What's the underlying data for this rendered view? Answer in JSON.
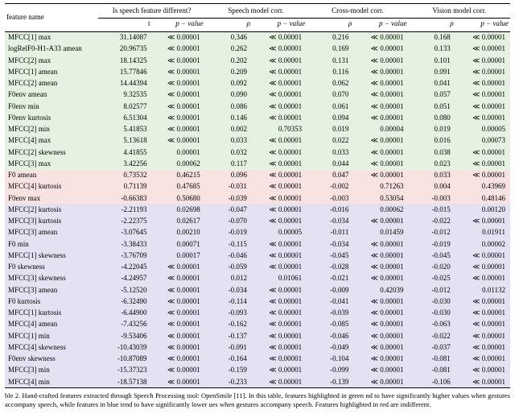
{
  "colors": {
    "green": "#e5f2e1",
    "red": "#f8e2e2",
    "blue": "#e3e2f3",
    "rule": "#000000",
    "bg": "#ffffff"
  },
  "header": {
    "feature": "feature name",
    "grp1": "Is speech feature different?",
    "grp2": "Speech model corr.",
    "grp3": "Cross-model corr.",
    "grp4": "Vision model corr.",
    "t": "t",
    "p": "p − value",
    "rho": "ρ"
  },
  "caption": "ble 2.  Hand-crafted features extracted through Speech Processing tool: OpenSmile [11]. In this table, features highlighted in green nd to have significantly higher values when gestures accompany speech, while features in blue tend to have significantly lower ues when gestures accompany speech. Features highlighted in red are indifferent.",
  "rows": [
    {
      "c": "g",
      "f": "MFCC[1] max",
      "t": "31.14087",
      "p1": "≪ 0.00001",
      "r1": "0.346",
      "pv1": "≪ 0.00001",
      "r2": "0.216",
      "pv2": "≪ 0.00001",
      "r3": "0.168",
      "pv3": "≪ 0.00001"
    },
    {
      "c": "g",
      "f": "logRelF0-H1-A33 amean",
      "t": "20.96735",
      "p1": "≪ 0.00001",
      "r1": "0.262",
      "pv1": "≪ 0.00001",
      "r2": "0.169",
      "pv2": "≪ 0.00001",
      "r3": "0.133",
      "pv3": "≪ 0.00001"
    },
    {
      "c": "g",
      "f": "MFCC[2] max",
      "t": "18.14325",
      "p1": "≪ 0.00001",
      "r1": "0.202",
      "pv1": "≪ 0.00001",
      "r2": "0.131",
      "pv2": "≪ 0.00001",
      "r3": "0.101",
      "pv3": "≪ 0.00001"
    },
    {
      "c": "g",
      "f": "MFCC[1] amean",
      "t": "15.77846",
      "p1": "≪ 0.00001",
      "r1": "0.209",
      "pv1": "≪ 0.00001",
      "r2": "0.116",
      "pv2": "≪ 0.00001",
      "r3": "0.091",
      "pv3": "≪ 0.00001"
    },
    {
      "c": "g",
      "f": "MFCC[2] amean",
      "t": "14.44394",
      "p1": "≪ 0.00001",
      "r1": "0.092",
      "pv1": "≪ 0.00001",
      "r2": "0.062",
      "pv2": "≪ 0.00001",
      "r3": "0.041",
      "pv3": "≪ 0.00001"
    },
    {
      "c": "g",
      "f": "F0env amean",
      "t": "9.32535",
      "p1": "≪ 0.00001",
      "r1": "0.090",
      "pv1": "≪ 0.00001",
      "r2": "0.070",
      "pv2": "≪ 0.00001",
      "r3": "0.057",
      "pv3": "≪ 0.00001"
    },
    {
      "c": "g",
      "f": "F0env min",
      "t": "8.02577",
      "p1": "≪ 0.00001",
      "r1": "0.086",
      "pv1": "≪ 0.00001",
      "r2": "0.061",
      "pv2": "≪ 0.00001",
      "r3": "0.051",
      "pv3": "≪ 0.00001"
    },
    {
      "c": "g",
      "f": "F0env kurtosis",
      "t": "6.51304",
      "p1": "≪ 0.00001",
      "r1": "0.146",
      "pv1": "≪ 0.00001",
      "r2": "0.094",
      "pv2": "≪ 0.00001",
      "r3": "0.080",
      "pv3": "≪ 0.00001"
    },
    {
      "c": "g",
      "f": "MFCC[2] min",
      "t": "5.41853",
      "p1": "≪ 0.00001",
      "r1": "0.002",
      "pv1": "0.70353",
      "r2": "0.019",
      "pv2": "0.00004",
      "r3": "0.019",
      "pv3": "0.00005"
    },
    {
      "c": "g",
      "f": "MFCC[4] max",
      "t": "5.13618",
      "p1": "≪ 0.00001",
      "r1": "0.033",
      "pv1": "≪ 0.00001",
      "r2": "0.022",
      "pv2": "≪ 0.00001",
      "r3": "0.016",
      "pv3": "0.00073"
    },
    {
      "c": "g",
      "f": "MFCC[2] skewness",
      "t": "4.41855",
      "p1": "0.00001",
      "r1": "0.032",
      "pv1": "≪ 0.00001",
      "r2": "0.033",
      "pv2": "≪ 0.00001",
      "r3": "0.038",
      "pv3": "≪ 0.00001"
    },
    {
      "c": "g",
      "f": "MFCC[3] max",
      "t": "3.42256",
      "p1": "0.00062",
      "r1": "0.117",
      "pv1": "≪ 0.00001",
      "r2": "0.044",
      "pv2": "≪ 0.00001",
      "r3": "0.023",
      "pv3": "≪ 0.00001"
    },
    {
      "c": "r",
      "f": "F0 amean",
      "t": "0.73532",
      "p1": "0.46215",
      "r1": "0.096",
      "pv1": "≪ 0.00001",
      "r2": "0.047",
      "pv2": "≪ 0.00001",
      "r3": "0.033",
      "pv3": "≪ 0.00001"
    },
    {
      "c": "r",
      "f": "MFCC[4] kurtosis",
      "t": "0.71139",
      "p1": "0.47685",
      "r1": "-0.031",
      "pv1": "≪ 0.00001",
      "r2": "-0.002",
      "pv2": "0.71263",
      "r3": "0.004",
      "pv3": "0.43969"
    },
    {
      "c": "r",
      "f": "F0env max",
      "t": "-0.66383",
      "p1": "0.50680",
      "r1": "-0.039",
      "pv1": "≪ 0.00001",
      "r2": "-0.003",
      "pv2": "0.53054",
      "r3": "-0.003",
      "pv3": "0.48146"
    },
    {
      "c": "b",
      "f": "MFCC[2] kurtosis",
      "t": "-2.21193",
      "p1": "0.02698",
      "r1": "-0.047",
      "pv1": "≪ 0.00001",
      "r2": "-0.016",
      "pv2": "0.00062",
      "r3": "-0.015",
      "pv3": "0.00120"
    },
    {
      "c": "b",
      "f": "MFCC[3] kurtosis",
      "t": "-2.22375",
      "p1": "0.02617",
      "r1": "-0.070",
      "pv1": "≪ 0.00001",
      "r2": "-0.034",
      "pv2": "≪ 0.00001",
      "r3": "-0.022",
      "pv3": "≪ 0.00001"
    },
    {
      "c": "b",
      "f": "MFCC[3] amean",
      "t": "-3.07645",
      "p1": "0.00210",
      "r1": "-0.019",
      "pv1": "0.00005",
      "r2": "-0.011",
      "pv2": "0.01459",
      "r3": "-0.012",
      "pv3": "0.01911"
    },
    {
      "c": "b",
      "f": "F0 min",
      "t": "-3.38433",
      "p1": "0.00071",
      "r1": "-0.115",
      "pv1": "≪ 0.00001",
      "r2": "-0.034",
      "pv2": "≪ 0.00001",
      "r3": "-0.019",
      "pv3": "0.00002"
    },
    {
      "c": "b",
      "f": "MFCC[1] skewness",
      "t": "-3.76709",
      "p1": "0.00017",
      "r1": "-0.046",
      "pv1": "≪ 0.00001",
      "r2": "-0.045",
      "pv2": "≪ 0.00001",
      "r3": "-0.045",
      "pv3": "≪ 0.00001"
    },
    {
      "c": "b",
      "f": "F0 skewness",
      "t": "-4.22045",
      "p1": "≪ 0.00001",
      "r1": "-0.059",
      "pv1": "≪ 0.00001",
      "r2": "-0.028",
      "pv2": "≪ 0.00001",
      "r3": "-0.020",
      "pv3": "≪ 0.00001"
    },
    {
      "c": "b",
      "f": "MFCC[3] skewness",
      "t": "-4.24957",
      "p1": "≪ 0.00001",
      "r1": "0.012",
      "pv1": "0.01061",
      "r2": "-0.021",
      "pv2": "≪ 0.00001",
      "r3": "-0.025",
      "pv3": "≪ 0.00001"
    },
    {
      "c": "b",
      "f": "MFCC[3] amean",
      "t": "-5.12520",
      "p1": "≪ 0.00001",
      "r1": "-0.034",
      "pv1": "≪ 0.00001",
      "r2": "-0.009",
      "pv2": "0.42039",
      "r3": "-0.012",
      "pv3": "0.01132"
    },
    {
      "c": "b",
      "f": "F0 kurtosis",
      "t": "-6.32490",
      "p1": "≪ 0.00001",
      "r1": "-0.114",
      "pv1": "≪ 0.00001",
      "r2": "-0.041",
      "pv2": "≪ 0.00001",
      "r3": "-0.030",
      "pv3": "≪ 0.00001"
    },
    {
      "c": "b",
      "f": "MFCC[1] kurtosis",
      "t": "-6.44900",
      "p1": "≪ 0.00001",
      "r1": "-0.093",
      "pv1": "≪ 0.00001",
      "r2": "-0.039",
      "pv2": "≪ 0.00001",
      "r3": "-0.030",
      "pv3": "≪ 0.00001"
    },
    {
      "c": "b",
      "f": "MFCC[4] amean",
      "t": "-7.43256",
      "p1": "≪ 0.00001",
      "r1": "-0.162",
      "pv1": "≪ 0.00001",
      "r2": "-0.085",
      "pv2": "≪ 0.00001",
      "r3": "-0.063",
      "pv3": "≪ 0.00001"
    },
    {
      "c": "b",
      "f": "MFCC[1] min",
      "t": "-9.53406",
      "p1": "≪ 0.00001",
      "r1": "-0.137",
      "pv1": "≪ 0.00001",
      "r2": "-0.046",
      "pv2": "≪ 0.00001",
      "r3": "-0.022",
      "pv3": "≪ 0.00001"
    },
    {
      "c": "b",
      "f": "MFCC[4] skewness",
      "t": "-10.43039",
      "p1": "≪ 0.00001",
      "r1": "-0.091",
      "pv1": "≪ 0.00001",
      "r2": "-0.049",
      "pv2": "≪ 0.00001",
      "r3": "-0.037",
      "pv3": "≪ 0.00001"
    },
    {
      "c": "b",
      "f": "F0env skewness",
      "t": "-10.87089",
      "p1": "≪ 0.00001",
      "r1": "-0.164",
      "pv1": "≪ 0.00001",
      "r2": "-0.104",
      "pv2": "≪ 0.00001",
      "r3": "-0.081",
      "pv3": "≪ 0.00001"
    },
    {
      "c": "b",
      "f": "MFCC[3] min",
      "t": "-15.37323",
      "p1": "≪ 0.00001",
      "r1": "-0.159",
      "pv1": "≪ 0.00001",
      "r2": "-0.099",
      "pv2": "≪ 0.00001",
      "r3": "-0.081",
      "pv3": "≪ 0.00001"
    },
    {
      "c": "b",
      "f": "MFCC[4] min",
      "t": "-18.57138",
      "p1": "≪ 0.00001",
      "r1": "-0.233",
      "pv1": "≪ 0.00001",
      "r2": "-0.139",
      "pv2": "≪ 0.00001",
      "r3": "-0.106",
      "pv3": "≪ 0.00001"
    }
  ]
}
